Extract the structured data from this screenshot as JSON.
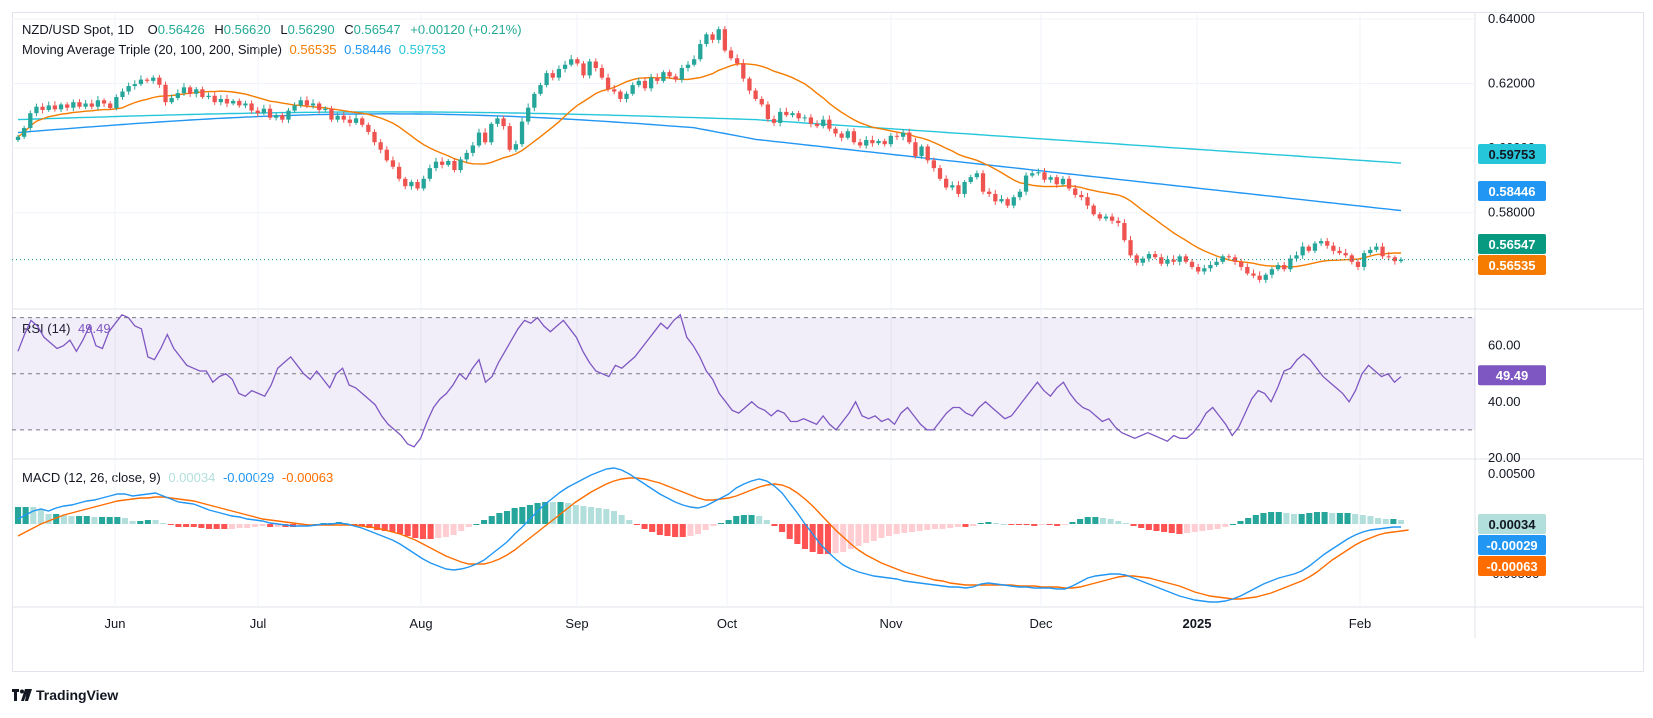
{
  "header": {
    "symbol": "NZD/USD Spot, 1D",
    "o_label": "O",
    "o_value": "0.56426",
    "h_label": "H",
    "h_value": "0.56620",
    "l_label": "L",
    "l_value": "0.56290",
    "c_label": "C",
    "c_value": "0.56547",
    "change": "+0.00120 (+0.21%)",
    "ma_title": "Moving Average Triple (20, 100, 200, Simple)",
    "ma20_value": "0.56535",
    "ma100_value": "0.58446",
    "ma200_value": "0.59753"
  },
  "rsi_header": {
    "title": "RSI (14)",
    "value": "49.49"
  },
  "macd_header": {
    "title": "MACD (12, 26, close, 9)",
    "hist_value": "0.00034",
    "macd_value": "-0.00029",
    "signal_value": "-0.00063"
  },
  "price_tags": {
    "last": "0.56547",
    "ma20": "0.56535",
    "ma100": "0.58446",
    "ma200": "0.59753",
    "rsi": "49.49",
    "macd_hist": "0.00034",
    "macd": "-0.00029",
    "signal": "-0.00063"
  },
  "brand": {
    "name": "TradingView",
    "logo_icon": "tradingview-logo-icon"
  },
  "colors": {
    "up": "#26a69a",
    "down": "#ef5350",
    "ma20": "#f57c00",
    "ma100": "#2196f3",
    "ma200": "#26c6da",
    "rsi": "#7e57c2",
    "macd": "#2196f3",
    "signal": "#ff6d00",
    "hist_up_strong": "#26a69a",
    "hist_up_weak": "#b2dfdb",
    "hist_down_strong": "#ff5252",
    "hist_down_weak": "#ffcdd2"
  },
  "chart_data": {
    "type": "candlestick",
    "x_axis": {
      "ticks": [
        "Jun",
        "Jul",
        "Aug",
        "Sep",
        "Oct",
        "Nov",
        "Dec",
        "2025",
        "Feb"
      ]
    },
    "price_panel": {
      "y_ticks": [
        "0.64000",
        "0.62000",
        "0.60000",
        "0.58000"
      ],
      "ylim": [
        0.5505,
        0.6415
      ],
      "last_price": 0.56547,
      "close": [
        0.6035,
        0.6062,
        0.6108,
        0.6128,
        0.6118,
        0.6132,
        0.612,
        0.6135,
        0.6125,
        0.6142,
        0.6128,
        0.6138,
        0.6128,
        0.6148,
        0.6138,
        0.6124,
        0.6158,
        0.6175,
        0.6192,
        0.6198,
        0.6212,
        0.6208,
        0.6218,
        0.6196,
        0.6142,
        0.6155,
        0.617,
        0.6188,
        0.6168,
        0.6182,
        0.6158,
        0.6162,
        0.6142,
        0.6152,
        0.6138,
        0.6146,
        0.6132,
        0.6138,
        0.6116,
        0.6108,
        0.6122,
        0.6094,
        0.6102,
        0.6088,
        0.6116,
        0.6132,
        0.6148,
        0.6132,
        0.6138,
        0.6118,
        0.6122,
        0.6088,
        0.61,
        0.6088,
        0.6078,
        0.6092,
        0.6072,
        0.605,
        0.6018,
        0.5995,
        0.5962,
        0.5942,
        0.5905,
        0.5882,
        0.5895,
        0.5875,
        0.5905,
        0.5938,
        0.5958,
        0.5948,
        0.596,
        0.5932,
        0.5965,
        0.5985,
        0.6008,
        0.6048,
        0.6018,
        0.6075,
        0.6092,
        0.6068,
        0.5995,
        0.6012,
        0.6082,
        0.6125,
        0.6168,
        0.6195,
        0.6232,
        0.6218,
        0.6245,
        0.6258,
        0.6275,
        0.6262,
        0.6225,
        0.6268,
        0.6248,
        0.6218,
        0.6182,
        0.6175,
        0.6152,
        0.6168,
        0.6195,
        0.6208,
        0.6185,
        0.6218,
        0.6208,
        0.6235,
        0.6222,
        0.6212,
        0.6248,
        0.6258,
        0.6275,
        0.6322,
        0.6352,
        0.6335,
        0.6368,
        0.6302,
        0.6278,
        0.6262,
        0.6215,
        0.6178,
        0.6152,
        0.6135,
        0.609,
        0.6078,
        0.6112,
        0.6102,
        0.6108,
        0.6092,
        0.6095,
        0.6075,
        0.6068,
        0.6088,
        0.606,
        0.6045,
        0.6032,
        0.6052,
        0.6018,
        0.6008,
        0.6025,
        0.6015,
        0.6022,
        0.6012,
        0.6038,
        0.6035,
        0.6048,
        0.6018,
        0.5975,
        0.6005,
        0.5962,
        0.5938,
        0.5905,
        0.5878,
        0.5885,
        0.5858,
        0.5895,
        0.591,
        0.5922,
        0.5865,
        0.5858,
        0.5835,
        0.5842,
        0.5822,
        0.5848,
        0.5865,
        0.5915,
        0.5922,
        0.5925,
        0.5902,
        0.591,
        0.5888,
        0.5905,
        0.5875,
        0.5855,
        0.5848,
        0.5822,
        0.5795,
        0.5782,
        0.5788,
        0.5775,
        0.5768,
        0.5715,
        0.5668,
        0.5645,
        0.5658,
        0.5672,
        0.5662,
        0.5642,
        0.5655,
        0.5648,
        0.5665,
        0.5648,
        0.5632,
        0.5618,
        0.5628,
        0.5638,
        0.5648,
        0.5665,
        0.5662,
        0.5648,
        0.5632,
        0.5612,
        0.5605,
        0.5592,
        0.5608,
        0.5625,
        0.5638,
        0.5625,
        0.5658,
        0.5668,
        0.5695,
        0.5682,
        0.5705,
        0.5712,
        0.5698,
        0.5682,
        0.5675,
        0.5668,
        0.5648,
        0.5632,
        0.5675,
        0.5685,
        0.5695,
        0.5665,
        0.5662,
        0.565,
        0.5655
      ]
    },
    "rsi_panel": {
      "y_ticks": [
        "60.00",
        "40.00",
        "20.00"
      ],
      "ylim": [
        20,
        72
      ],
      "bands": [
        30,
        50,
        70
      ],
      "series_name": "RSI (14)",
      "values": [
        58,
        64,
        69,
        67,
        63,
        61,
        59,
        60,
        62,
        58,
        62,
        67,
        60,
        59,
        65,
        68,
        71,
        70,
        67,
        66,
        56,
        55,
        59,
        64,
        59,
        56,
        53,
        52,
        51,
        51,
        47,
        49,
        50,
        48,
        43,
        42,
        44,
        43,
        42,
        46,
        52,
        54,
        56,
        53,
        50,
        48,
        51,
        48,
        45,
        50,
        52,
        46,
        45,
        43,
        41,
        39,
        35,
        32,
        30,
        28,
        25,
        24,
        27,
        33,
        38,
        41,
        43,
        46,
        50,
        48,
        52,
        55,
        47,
        49,
        54,
        58,
        62,
        66,
        69,
        68,
        70,
        67,
        65,
        67,
        69,
        66,
        63,
        58,
        54,
        51,
        50,
        49,
        53,
        52,
        54,
        56,
        59,
        62,
        65,
        68,
        66,
        69,
        71,
        63,
        60,
        56,
        51,
        48,
        43,
        40,
        37,
        36,
        38,
        40,
        38,
        37,
        35,
        37,
        36,
        33,
        33,
        34,
        33,
        32,
        35,
        32,
        30,
        33,
        36,
        40,
        35,
        34,
        35,
        33,
        34,
        32,
        36,
        38,
        35,
        32,
        30,
        30,
        33,
        36,
        38,
        38,
        36,
        35,
        38,
        40,
        38,
        36,
        34,
        35,
        38,
        41,
        44,
        47,
        44,
        42,
        45,
        47,
        43,
        40,
        38,
        37,
        35,
        33,
        34,
        31,
        29,
        28,
        27,
        28,
        29,
        28,
        27,
        26,
        28,
        27,
        27,
        29,
        32,
        36,
        38,
        35,
        32,
        28,
        31,
        36,
        41,
        44,
        43,
        40,
        45,
        51,
        52,
        55,
        57,
        55,
        52,
        49,
        47,
        45,
        43,
        40,
        44,
        50,
        53,
        51,
        49,
        50,
        47,
        49
      ]
    },
    "macd_panel": {
      "y_ticks": [
        "0.00500",
        "-0.00500"
      ],
      "ylim": [
        -0.0082,
        0.0062
      ],
      "series": [
        {
          "name": "MACD",
          "color": "#2196f3",
          "values": [
            0.0005,
            0.0009,
            0.0013,
            0.0015,
            0.0013,
            0.0016,
            0.0018,
            0.0019,
            0.0021,
            0.0023,
            0.0024,
            0.0026,
            0.0028,
            0.003,
            0.003,
            0.0028,
            0.0029,
            0.003,
            0.0031,
            0.0028,
            0.0025,
            0.0022,
            0.0021,
            0.002,
            0.0017,
            0.0014,
            0.0012,
            0.001,
            0.0008,
            0.0007,
            0.0005,
            0.0004,
            0.0003,
            0.0001,
            0.0,
            -0.0001,
            -0.0002,
            -0.0002,
            -0.0002,
            -0.0001,
            0.0,
            0.0,
            0.0001,
            0.0,
            -0.0002,
            -0.0004,
            -0.0007,
            -0.001,
            -0.0013,
            -0.0016,
            -0.002,
            -0.0025,
            -0.003,
            -0.0035,
            -0.0039,
            -0.0042,
            -0.0045,
            -0.0046,
            -0.0045,
            -0.0043,
            -0.004,
            -0.0036,
            -0.003,
            -0.0024,
            -0.0018,
            -0.001,
            -0.0003,
            0.0005,
            0.0013,
            0.002,
            0.0026,
            0.0032,
            0.0037,
            0.0041,
            0.0045,
            0.0049,
            0.0052,
            0.0055,
            0.0056,
            0.0054,
            0.005,
            0.0045,
            0.004,
            0.0035,
            0.003,
            0.0026,
            0.0022,
            0.0019,
            0.0017,
            0.0016,
            0.0018,
            0.0022,
            0.0026,
            0.003,
            0.0036,
            0.004,
            0.0043,
            0.0045,
            0.0043,
            0.0038,
            0.0031,
            0.0021,
            0.0011,
            0.0,
            -0.001,
            -0.002,
            -0.0028,
            -0.0035,
            -0.0041,
            -0.0045,
            -0.0048,
            -0.005,
            -0.0052,
            -0.0053,
            -0.0054,
            -0.0055,
            -0.0057,
            -0.0058,
            -0.0059,
            -0.006,
            -0.0061,
            -0.0062,
            -0.0063,
            -0.0063,
            -0.0064,
            -0.0063,
            -0.006,
            -0.0059,
            -0.006,
            -0.0061,
            -0.0062,
            -0.0063,
            -0.0063,
            -0.0064,
            -0.0064,
            -0.0064,
            -0.0065,
            -0.0065,
            -0.0062,
            -0.0058,
            -0.0054,
            -0.0052,
            -0.0051,
            -0.005,
            -0.005,
            -0.0051,
            -0.0054,
            -0.0057,
            -0.006,
            -0.0063,
            -0.0066,
            -0.0069,
            -0.0072,
            -0.0074,
            -0.0076,
            -0.0077,
            -0.0078,
            -0.0078,
            -0.0077,
            -0.0075,
            -0.0072,
            -0.0068,
            -0.0064,
            -0.006,
            -0.0057,
            -0.0054,
            -0.0052,
            -0.005,
            -0.0047,
            -0.0042,
            -0.0036,
            -0.003,
            -0.0025,
            -0.002,
            -0.0015,
            -0.0011,
            -0.0008,
            -0.0006,
            -0.0005,
            -0.0004,
            -0.0003,
            -0.0003
          ]
        },
        {
          "name": "Signal",
          "color": "#ff6d00",
          "values": [
            -0.0012,
            -0.0008,
            -0.0004,
            0.0,
            0.0003,
            0.0006,
            0.0009,
            0.0011,
            0.0013,
            0.0015,
            0.0017,
            0.0019,
            0.0021,
            0.0023,
            0.0024,
            0.0025,
            0.0026,
            0.0026,
            0.0027,
            0.0027,
            0.0026,
            0.0025,
            0.0024,
            0.0023,
            0.0021,
            0.0019,
            0.0017,
            0.0015,
            0.0013,
            0.0011,
            0.0009,
            0.0007,
            0.0005,
            0.0004,
            0.0003,
            0.0002,
            0.0001,
            0.0,
            -0.0001,
            -0.0001,
            -0.0001,
            -0.0001,
            -0.0001,
            -0.0001,
            -0.0001,
            -0.0002,
            -0.0003,
            -0.0004,
            -0.0006,
            -0.0008,
            -0.001,
            -0.0013,
            -0.0016,
            -0.002,
            -0.0024,
            -0.0028,
            -0.0032,
            -0.0035,
            -0.0038,
            -0.004,
            -0.004,
            -0.004,
            -0.0038,
            -0.0035,
            -0.0031,
            -0.0026,
            -0.002,
            -0.0014,
            -0.0008,
            -0.0002,
            0.0004,
            0.001,
            0.0016,
            0.0022,
            0.0027,
            0.0032,
            0.0036,
            0.004,
            0.0043,
            0.0045,
            0.0046,
            0.0046,
            0.0045,
            0.0043,
            0.0041,
            0.0038,
            0.0035,
            0.0032,
            0.0029,
            0.0026,
            0.0024,
            0.0024,
            0.0025,
            0.0026,
            0.0028,
            0.0031,
            0.0034,
            0.0037,
            0.0039,
            0.004,
            0.0039,
            0.0036,
            0.0031,
            0.0025,
            0.0018,
            0.001,
            0.0002,
            -0.0006,
            -0.0013,
            -0.002,
            -0.0026,
            -0.0031,
            -0.0035,
            -0.0039,
            -0.0042,
            -0.0045,
            -0.0048,
            -0.005,
            -0.0052,
            -0.0054,
            -0.0056,
            -0.0057,
            -0.0059,
            -0.006,
            -0.0061,
            -0.0061,
            -0.0061,
            -0.0061,
            -0.0061,
            -0.0061,
            -0.0061,
            -0.0062,
            -0.0062,
            -0.0062,
            -0.0063,
            -0.0063,
            -0.0063,
            -0.0064,
            -0.0064,
            -0.0063,
            -0.0061,
            -0.0059,
            -0.0057,
            -0.0055,
            -0.0053,
            -0.0052,
            -0.0052,
            -0.0053,
            -0.0054,
            -0.0056,
            -0.0058,
            -0.006,
            -0.0062,
            -0.0065,
            -0.0068,
            -0.007,
            -0.0072,
            -0.0073,
            -0.0074,
            -0.0075,
            -0.0075,
            -0.0074,
            -0.0073,
            -0.0071,
            -0.0069,
            -0.0066,
            -0.0063,
            -0.006,
            -0.0057,
            -0.0053,
            -0.0048,
            -0.0042,
            -0.0036,
            -0.0031,
            -0.0026,
            -0.0021,
            -0.0017,
            -0.0014,
            -0.0011,
            -0.0009,
            -0.0008,
            -0.0007,
            -0.0006
          ]
        }
      ]
    },
    "legend_placement": "top-left",
    "grid": true
  }
}
